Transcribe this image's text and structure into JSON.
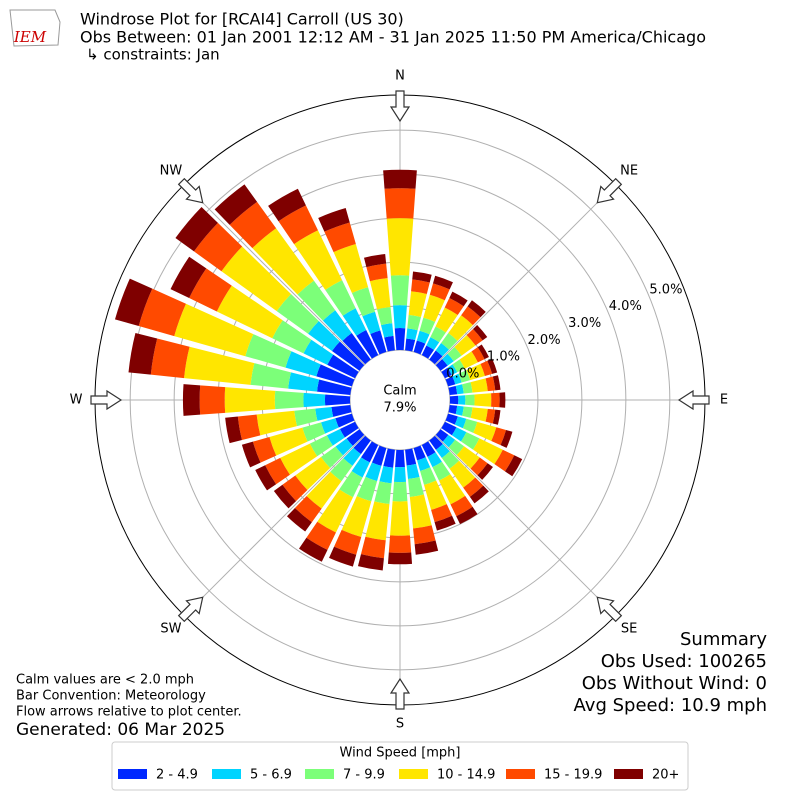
{
  "header": {
    "logo_text": "IEM",
    "title": "Windrose Plot for [RCAI4] Carroll (US 30)",
    "subtitle": "Obs Between: 01 Jan 2001 12:12 AM - 31 Jan 2025 11:50 PM America/Chicago",
    "constraints": "↳ constraints: Jan"
  },
  "chart_data": {
    "type": "windrose",
    "categories": [
      null,
      null,
      null,
      null,
      null,
      null,
      null,
      null,
      null,
      null,
      null,
      null,
      null,
      null,
      null,
      null,
      null,
      null,
      null,
      null,
      null,
      null,
      null,
      null,
      null,
      null,
      null,
      null,
      null,
      null,
      null,
      null,
      null,
      null,
      null,
      null
    ],
    "direction_labels": [
      "N",
      "NE",
      "E",
      "SE",
      "S",
      "SW",
      "W",
      "NW"
    ],
    "ylim": [
      0,
      5.8
    ],
    "yticks": [
      {
        "value": 0,
        "label": "0.0%"
      },
      {
        "value": 1,
        "label": "1.0%"
      },
      {
        "value": 2,
        "label": "2.0%"
      },
      {
        "value": 3,
        "label": "3.0%"
      },
      {
        "value": 4,
        "label": "4.0%"
      },
      {
        "value": 5,
        "label": "5.0%"
      }
    ],
    "grid": true,
    "calm": {
      "label": "Calm",
      "value": 7.9,
      "value_label": "7.9%"
    },
    "legend_title": "Wind Speed [mph]",
    "series": [
      {
        "name": "2 - 4.9",
        "color": "#0028ff",
        "values": [
          0.5,
          0.27,
          0.27,
          0.24,
          0.25,
          0.2,
          0.17,
          0.17,
          0.17,
          0.19,
          0.17,
          0.23,
          0.29,
          0.22,
          0.26,
          0.3,
          0.29,
          0.36,
          0.39,
          0.41,
          0.42,
          0.44,
          0.38,
          0.36,
          0.38,
          0.39,
          0.43,
          0.57,
          0.76,
          0.84,
          0.7,
          0.77,
          0.74,
          0.63,
          0.51,
          0.33
        ]
      },
      {
        "name": "5 - 6.9",
        "color": "#00d4ff",
        "values": [
          0.52,
          0.23,
          0.23,
          0.21,
          0.21,
          0.17,
          0.14,
          0.15,
          0.15,
          0.16,
          0.15,
          0.2,
          0.25,
          0.19,
          0.23,
          0.26,
          0.25,
          0.31,
          0.34,
          0.36,
          0.36,
          0.38,
          0.33,
          0.31,
          0.33,
          0.34,
          0.37,
          0.49,
          0.66,
          0.73,
          0.6,
          0.67,
          0.64,
          0.55,
          0.44,
          0.29
        ]
      },
      {
        "name": "7 - 9.9",
        "color": "#7cff79",
        "values": [
          0.68,
          0.31,
          0.31,
          0.27,
          0.28,
          0.22,
          0.19,
          0.2,
          0.2,
          0.21,
          0.2,
          0.26,
          0.33,
          0.25,
          0.3,
          0.34,
          0.33,
          0.41,
          0.44,
          0.47,
          0.48,
          0.5,
          0.43,
          0.41,
          0.43,
          0.44,
          0.48,
          0.65,
          0.86,
          0.95,
          0.79,
          0.88,
          0.83,
          0.71,
          0.58,
          0.37
        ]
      },
      {
        "name": "10 - 14.9",
        "color": "#ffe600",
        "values": [
          1.3,
          0.54,
          0.54,
          0.48,
          0.5,
          0.39,
          0.33,
          0.35,
          0.35,
          0.38,
          0.35,
          0.45,
          0.59,
          0.44,
          0.53,
          0.6,
          0.59,
          0.72,
          0.78,
          0.83,
          0.84,
          0.89,
          0.77,
          0.72,
          0.75,
          0.78,
          0.86,
          1.14,
          1.52,
          1.68,
          1.4,
          1.55,
          1.47,
          1.26,
          1.02,
          0.66
        ]
      },
      {
        "name": "15 - 19.9",
        "color": "#ff4a00",
        "values": [
          0.68,
          0.27,
          0.27,
          0.24,
          0.25,
          0.2,
          0.17,
          0.17,
          0.17,
          0.19,
          0.17,
          0.23,
          0.29,
          0.22,
          0.26,
          0.3,
          0.29,
          0.36,
          0.39,
          0.41,
          0.42,
          0.44,
          0.38,
          0.36,
          0.38,
          0.39,
          0.43,
          0.57,
          0.76,
          0.84,
          0.7,
          0.77,
          0.74,
          0.63,
          0.51,
          0.33
        ]
      },
      {
        "name": "20+",
        "color": "#7f0000",
        "values": [
          0.42,
          0.18,
          0.18,
          0.16,
          0.17,
          0.13,
          0.11,
          0.12,
          0.12,
          0.13,
          0.12,
          0.15,
          0.2,
          0.15,
          0.18,
          0.2,
          0.2,
          0.24,
          0.26,
          0.28,
          0.28,
          0.3,
          0.26,
          0.24,
          0.25,
          0.26,
          0.29,
          0.38,
          0.51,
          0.56,
          0.47,
          0.52,
          0.49,
          0.42,
          0.34,
          0.22
        ]
      }
    ]
  },
  "summary": {
    "title": "Summary",
    "obs_used": "Obs Used: 100265",
    "obs_without_wind": "Obs Without Wind: 0",
    "avg_speed": "Avg Speed: 10.9 mph"
  },
  "notes": [
    "Calm values are < 2.0 mph",
    "Bar Convention: Meteorology",
    "Flow arrows relative to plot center."
  ],
  "generated": "Generated: 06 Mar 2025"
}
